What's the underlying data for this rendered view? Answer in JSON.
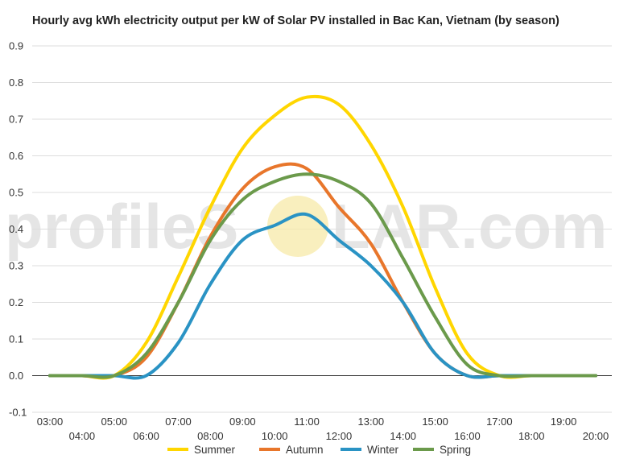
{
  "chart_data": {
    "type": "line",
    "title": "Hourly avg kWh electricity output per kW of Solar PV installed in Bac Kan, Vietnam (by season)",
    "xlabel": "",
    "ylabel": "",
    "x": [
      "03:00",
      "04:00",
      "05:00",
      "06:00",
      "07:00",
      "08:00",
      "09:00",
      "10:00",
      "11:00",
      "12:00",
      "13:00",
      "14:00",
      "15:00",
      "16:00",
      "17:00",
      "18:00",
      "19:00",
      "20:00"
    ],
    "ylim": [
      -0.1,
      0.9
    ],
    "yticks": [
      -0.1,
      0.0,
      0.1,
      0.2,
      0.3,
      0.4,
      0.5,
      0.6,
      0.7,
      0.8,
      0.9
    ],
    "grid": true,
    "legend_position": "bottom",
    "series": [
      {
        "name": "Summer",
        "color": "#ffd600",
        "values": [
          0.0,
          0.0,
          0.0,
          0.09,
          0.27,
          0.46,
          0.62,
          0.71,
          0.76,
          0.74,
          0.63,
          0.46,
          0.24,
          0.06,
          0.0,
          0.0,
          0.0,
          0.0
        ]
      },
      {
        "name": "Autumn",
        "color": "#e8762b",
        "values": [
          0.0,
          0.0,
          0.0,
          0.05,
          0.2,
          0.38,
          0.51,
          0.57,
          0.565,
          0.46,
          0.36,
          0.2,
          0.06,
          0.0,
          0.0,
          0.0,
          0.0,
          0.0
        ]
      },
      {
        "name": "Winter",
        "color": "#2a93c4",
        "values": [
          0.0,
          0.0,
          0.0,
          0.0,
          0.09,
          0.25,
          0.37,
          0.41,
          0.44,
          0.37,
          0.3,
          0.2,
          0.06,
          0.0,
          0.0,
          0.0,
          0.0,
          0.0
        ]
      },
      {
        "name": "Spring",
        "color": "#6b9a4b",
        "values": [
          0.0,
          0.0,
          0.0,
          0.06,
          0.2,
          0.37,
          0.48,
          0.53,
          0.55,
          0.53,
          0.47,
          0.32,
          0.16,
          0.03,
          0.0,
          0.0,
          0.0,
          0.0
        ]
      }
    ]
  },
  "watermark": {
    "text_left": "profileS",
    "text_right": "LAR.com",
    "sun_color": "#f7e9a8"
  }
}
